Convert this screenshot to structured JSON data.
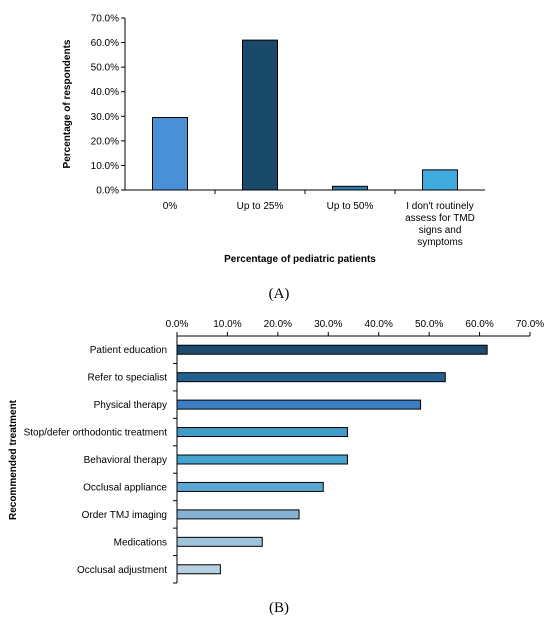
{
  "chart_data": [
    {
      "type": "bar",
      "panel_label": "(A)",
      "categories": [
        "0%",
        "Up to 25%",
        "Up to 50%",
        "I don't routinely assess for TMD signs and symptoms"
      ],
      "category_lines": [
        [
          "0%"
        ],
        [
          "Up to 25%"
        ],
        [
          "Up to 50%"
        ],
        [
          "I don't routinely",
          "assess for TMD",
          "signs and",
          "symptoms"
        ]
      ],
      "values": [
        29.5,
        61.0,
        1.5,
        8.2
      ],
      "colors": [
        "#4a90d9",
        "#1a4a6a",
        "#2d7dab",
        "#3eaadd"
      ],
      "xlabel": "Percentage of pediatric patients",
      "ylabel": "Percentage of respondents",
      "ylim": [
        0,
        70
      ],
      "yticks": [
        "0.0%",
        "10.0%",
        "20.0%",
        "30.0%",
        "40.0%",
        "50.0%",
        "60.0%",
        "70.0%"
      ],
      "grid": false
    },
    {
      "type": "bar",
      "orientation": "horizontal",
      "panel_label": "(B)",
      "categories": [
        "Patient education",
        "Refer to specialist",
        "Physical therapy",
        "Stop/defer orthodontic treatment",
        "Behavioral therapy",
        "Occlusal appliance",
        "Order TMJ imaging",
        "Medications",
        "Occlusal adjustment"
      ],
      "values": [
        61.5,
        53.2,
        48.3,
        33.8,
        33.8,
        29.0,
        24.2,
        16.9,
        8.6
      ],
      "colors": [
        "#1d4b6b",
        "#23608e",
        "#3b7ec2",
        "#3f9cc9",
        "#45a3cf",
        "#5ba7d2",
        "#83b2d3",
        "#a0c4dc",
        "#b5d0e0"
      ],
      "xlabel": "",
      "ylabel": "Recommended treatment",
      "xlim": [
        0,
        70
      ],
      "xticks": [
        "0.0%",
        "10.0%",
        "20.0%",
        "30.0%",
        "40.0%",
        "50.0%",
        "60.0%",
        "70.0%"
      ],
      "grid": false
    }
  ]
}
